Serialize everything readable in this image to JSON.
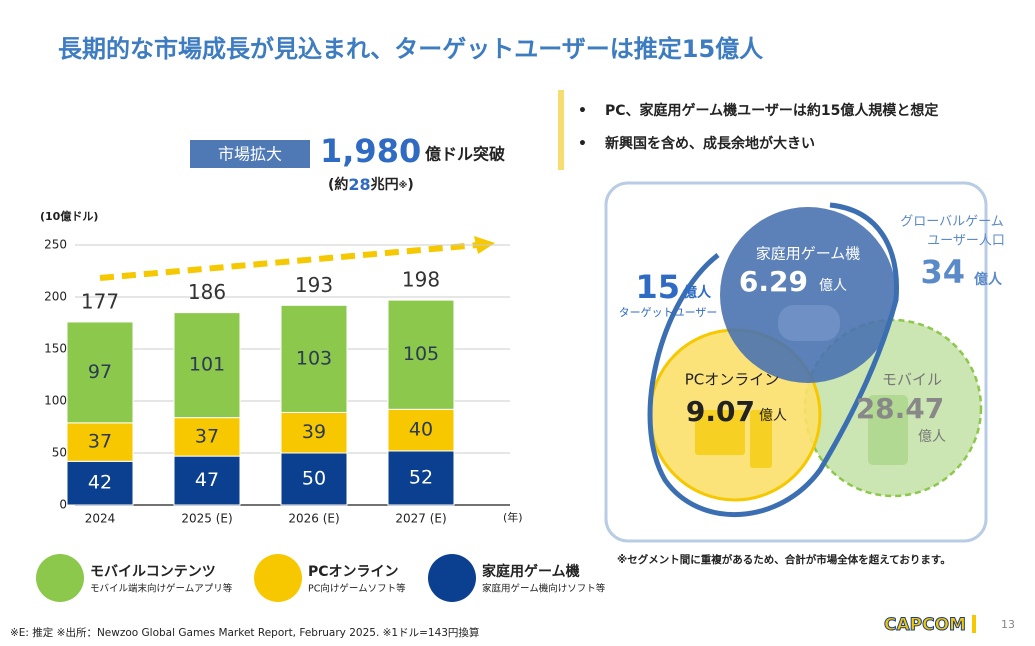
{
  "title": "長期的な市場成長が見込まれ、ターゲットユーザーは推定15億人",
  "callout": {
    "badge": "市場拡大",
    "amount": "1,980",
    "unit": "億ドル突破",
    "yen_open": "(約",
    "yen_value": "28",
    "yen_unit": "兆円",
    "yen_mark": "※",
    "yen_close": ")"
  },
  "bullets": [
    "PC、家庭用ゲーム機ユーザーは約15億人規模と想定",
    "新興国を含め、成長余地が大きい"
  ],
  "venn": {
    "console": {
      "label": "家庭用ゲーム機",
      "value": "6.29",
      "unit": "億人"
    },
    "pc": {
      "label": "PCオンライン",
      "value": "9.07",
      "unit": "億人"
    },
    "mobile": {
      "label": "モバイル",
      "value": "28.47",
      "unit": "億人"
    },
    "target": {
      "value": "15",
      "unit": "億人",
      "label": "ターゲットユーザー"
    },
    "global": {
      "label_1": "グローバルゲーム",
      "label_2": "ユーザー人口",
      "value": "34",
      "unit": "億人"
    },
    "note": "※セグメント間に重複があるため、合計が市場全体を超えております。"
  },
  "footer": {
    "source": "※E: 推定 ※出所：Newzoo Global Games Market Report, February 2025.  ※1ドル=143円換算",
    "logo": "CAPCOM",
    "page": "13"
  },
  "chart_data": {
    "type": "stacked-bar",
    "ylabel": "(10億ドル)",
    "xlabel": "(年)",
    "categories": [
      "2024",
      "2025 (E)",
      "2026 (E)",
      "2027 (E)"
    ],
    "series": [
      {
        "name": "家庭用ゲーム機",
        "description": "家庭用ゲーム機向けソフト等",
        "color": "#0b3f8f",
        "label_color": "#ffffff",
        "values": [
          42,
          47,
          50,
          52
        ]
      },
      {
        "name": "PCオンライン",
        "description": "PC向けゲームソフト等",
        "color": "#f7c800",
        "label_color": "#2b3a55",
        "values": [
          37,
          37,
          39,
          40
        ]
      },
      {
        "name": "モバイルコンテンツ",
        "description": "モバイル端末向けゲームアプリ等",
        "color": "#8cc84b",
        "label_color": "#2b3a55",
        "values": [
          97,
          101,
          103,
          105
        ]
      }
    ],
    "totals": [
      177,
      186,
      193,
      198
    ],
    "ylim": [
      0,
      250
    ],
    "yticks": [
      0,
      50,
      100,
      150,
      200,
      250
    ],
    "grid": true
  }
}
